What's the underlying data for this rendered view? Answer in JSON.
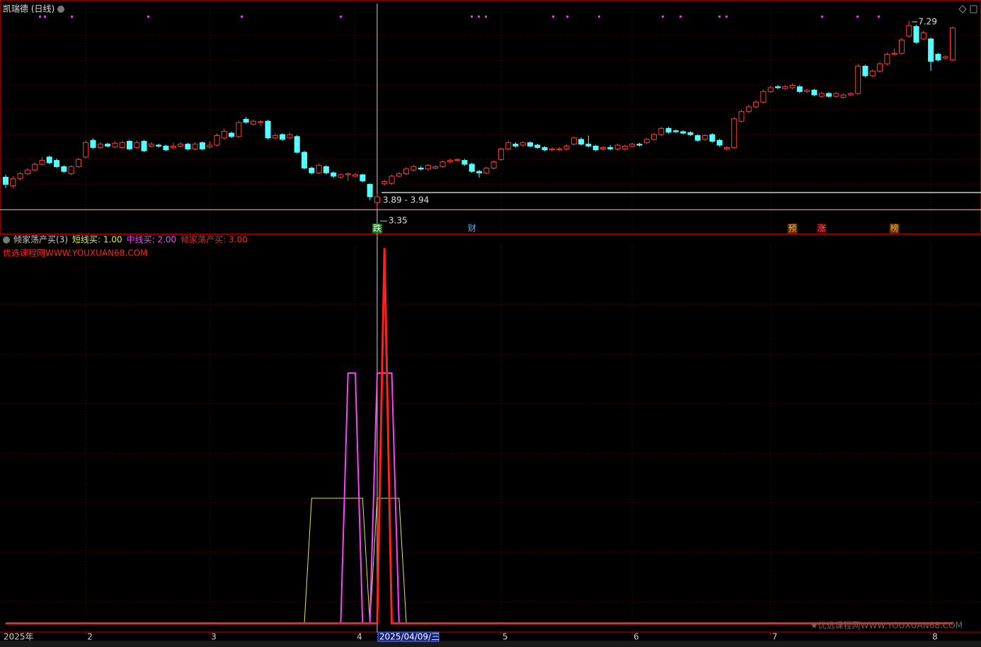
{
  "title": "凯瑞德 (日线)",
  "chart_data": [
    {
      "type": "candlestick",
      "categories": [
        "2025年",
        null,
        null,
        null,
        null,
        null,
        null,
        null,
        null,
        null,
        null,
        "2",
        null,
        null,
        null,
        null,
        null,
        null,
        null,
        null,
        null,
        null,
        null,
        null,
        null,
        null,
        null,
        null,
        "3",
        null,
        null,
        null,
        null,
        null,
        null,
        null,
        null,
        null,
        null,
        null,
        null,
        null,
        null,
        null,
        null,
        null,
        null,
        null,
        "4",
        null,
        null,
        null,
        null,
        null,
        null,
        null,
        null,
        null,
        null,
        null,
        null,
        null,
        null,
        null,
        null,
        null,
        null,
        null,
        "5",
        null,
        null,
        null,
        null,
        null,
        null,
        null,
        null,
        null,
        null,
        null,
        null,
        null,
        null,
        null,
        null,
        null,
        "6",
        null,
        null,
        null,
        null,
        null,
        null,
        null,
        null,
        null,
        null,
        null,
        null,
        null,
        null,
        null,
        null,
        null,
        null,
        "7",
        null,
        null,
        null,
        null,
        null,
        null,
        null,
        null,
        null,
        null,
        null,
        null,
        null,
        null,
        null,
        null,
        null,
        null,
        null,
        null,
        null,
        "8",
        null,
        null,
        null
      ],
      "open": [
        4.03,
        3.85,
        4.0,
        4.1,
        4.18,
        4.3,
        4.45,
        4.38,
        4.25,
        4.1,
        4.25,
        4.45,
        4.8,
        4.65,
        4.72,
        4.66,
        4.65,
        4.78,
        4.65,
        4.78,
        4.68,
        4.7,
        4.68,
        4.65,
        4.68,
        4.72,
        4.62,
        4.75,
        4.66,
        4.7,
        4.85,
        4.95,
        4.88,
        5.24,
        5.14,
        5.18,
        5.2,
        4.85,
        4.92,
        4.85,
        4.88,
        4.55,
        4.22,
        4.12,
        4.25,
        4.12,
        4.03,
        4.08,
        4.05,
        4.08,
        3.88,
        3.5,
        3.89,
        3.9,
        4.05,
        4.1,
        4.18,
        4.22,
        4.2,
        4.22,
        4.25,
        4.35,
        4.38,
        4.38,
        4.3,
        4.15,
        4.12,
        4.22,
        4.4,
        4.62,
        4.72,
        4.7,
        4.75,
        4.7,
        4.65,
        4.6,
        4.6,
        4.62,
        4.72,
        4.82,
        4.72,
        4.68,
        4.62,
        4.65,
        4.62,
        4.62,
        4.68,
        4.72,
        4.75,
        4.82,
        4.92,
        5.05,
        5.0,
        4.98,
        4.96,
        4.9,
        4.82,
        4.92,
        4.8,
        4.62,
        4.65,
        5.2,
        5.4,
        5.5,
        5.6,
        5.82,
        5.92,
        5.88,
        5.9,
        5.92,
        5.82,
        5.85,
        5.72,
        5.78,
        5.72,
        5.7,
        5.75,
        5.78,
        6.35,
        6.15,
        6.25,
        6.4,
        6.6,
        6.62,
        6.98,
        7.18,
        6.92,
        6.92,
        6.6,
        6.52,
        6.48
      ],
      "high": [
        4.08,
        4.05,
        4.14,
        4.22,
        4.34,
        4.45,
        4.48,
        4.42,
        4.28,
        4.28,
        4.44,
        4.8,
        4.84,
        4.76,
        4.75,
        4.78,
        4.79,
        4.81,
        4.8,
        4.81,
        4.76,
        4.73,
        4.71,
        4.75,
        4.76,
        4.75,
        4.76,
        4.78,
        4.78,
        4.94,
        5.05,
        4.98,
        5.21,
        5.29,
        5.23,
        5.22,
        5.23,
        4.94,
        4.95,
        4.96,
        4.91,
        4.58,
        4.25,
        4.31,
        4.28,
        4.15,
        4.11,
        4.13,
        4.12,
        4.1,
        3.9,
        3.68,
        3.98,
        4.08,
        4.14,
        4.24,
        4.28,
        4.26,
        4.31,
        4.28,
        4.38,
        4.42,
        4.43,
        4.41,
        4.33,
        4.18,
        4.25,
        4.38,
        4.65,
        4.8,
        4.76,
        4.78,
        4.78,
        4.73,
        4.68,
        4.65,
        4.66,
        4.71,
        4.88,
        4.86,
        4.9,
        4.71,
        4.68,
        4.7,
        4.73,
        4.71,
        4.75,
        4.75,
        4.85,
        4.95,
        5.08,
        5.08,
        5.03,
        5.01,
        4.99,
        4.93,
        4.93,
        4.95,
        4.83,
        4.68,
        5.28,
        5.44,
        5.54,
        5.64,
        5.86,
        5.94,
        5.96,
        5.96,
        5.99,
        5.96,
        5.88,
        5.88,
        5.81,
        5.81,
        5.81,
        5.78,
        5.81,
        6.4,
        6.38,
        6.28,
        6.44,
        6.64,
        6.72,
        6.95,
        7.29,
        7.22,
        7.1,
        6.95,
        6.63,
        6.58,
        7.18
      ],
      "low": [
        3.8,
        3.8,
        3.97,
        4.07,
        4.15,
        4.27,
        4.3,
        4.22,
        4.12,
        4.07,
        4.22,
        4.42,
        4.62,
        4.62,
        4.65,
        4.63,
        4.62,
        4.59,
        4.62,
        4.55,
        4.65,
        4.65,
        4.57,
        4.62,
        4.65,
        4.59,
        4.59,
        4.59,
        4.63,
        4.67,
        4.82,
        4.85,
        4.85,
        5.15,
        5.11,
        5.1,
        4.82,
        4.82,
        4.79,
        4.82,
        4.52,
        4.19,
        4.09,
        4.09,
        4.09,
        4.02,
        4.0,
        3.95,
        4.02,
        3.92,
        3.55,
        3.35,
        3.85,
        3.87,
        4.02,
        4.07,
        4.15,
        4.17,
        4.17,
        4.19,
        4.22,
        4.32,
        4.35,
        4.27,
        4.12,
        4.02,
        4.09,
        4.19,
        4.37,
        4.59,
        4.65,
        4.67,
        4.65,
        4.62,
        4.57,
        4.57,
        4.57,
        4.59,
        4.69,
        4.69,
        4.65,
        4.57,
        4.59,
        4.59,
        4.59,
        4.59,
        4.65,
        4.67,
        4.72,
        4.79,
        4.89,
        4.94,
        4.95,
        4.92,
        4.89,
        4.77,
        4.79,
        4.75,
        4.67,
        4.59,
        4.62,
        5.17,
        5.37,
        5.47,
        5.57,
        5.79,
        5.87,
        5.85,
        5.87,
        5.79,
        5.79,
        5.72,
        5.69,
        5.69,
        5.69,
        5.67,
        5.72,
        5.75,
        6.12,
        6.12,
        6.22,
        6.37,
        6.57,
        6.59,
        6.95,
        6.82,
        6.89,
        6.25,
        6.45,
        6.49,
        6.45
      ],
      "close": [
        3.88,
        4.0,
        4.1,
        4.18,
        4.3,
        4.38,
        4.33,
        4.25,
        4.15,
        4.25,
        4.4,
        4.75,
        4.65,
        4.72,
        4.68,
        4.74,
        4.75,
        4.62,
        4.75,
        4.58,
        4.72,
        4.68,
        4.6,
        4.68,
        4.72,
        4.62,
        4.72,
        4.62,
        4.7,
        4.9,
        4.99,
        4.88,
        5.17,
        5.18,
        5.2,
        5.19,
        4.85,
        4.9,
        4.82,
        4.92,
        4.55,
        4.22,
        4.12,
        4.28,
        4.12,
        4.05,
        4.08,
        4.1,
        4.08,
        3.95,
        3.62,
        3.62,
        3.94,
        4.05,
        4.1,
        4.2,
        4.25,
        4.2,
        4.28,
        4.25,
        4.35,
        4.38,
        4.4,
        4.3,
        4.15,
        4.12,
        4.22,
        4.35,
        4.62,
        4.75,
        4.68,
        4.75,
        4.68,
        4.65,
        4.6,
        4.62,
        4.62,
        4.68,
        4.85,
        4.72,
        4.68,
        4.6,
        4.65,
        4.62,
        4.7,
        4.68,
        4.72,
        4.7,
        4.82,
        4.92,
        5.05,
        4.97,
        4.98,
        4.95,
        4.92,
        4.8,
        4.9,
        4.78,
        4.7,
        4.65,
        5.25,
        5.4,
        5.5,
        5.6,
        5.82,
        5.9,
        5.9,
        5.92,
        5.95,
        5.82,
        5.85,
        5.75,
        5.78,
        5.72,
        5.78,
        5.75,
        5.78,
        6.35,
        6.15,
        6.25,
        6.4,
        6.6,
        6.62,
        6.9,
        7.2,
        6.85,
        7.05,
        6.45,
        6.48,
        6.55,
        7.15
      ],
      "ylim": [
        2.85,
        7.66
      ],
      "up_color": "#ff3c3c",
      "down_color": "#54ffff",
      "events": [
        null,
        null,
        null,
        null,
        null,
        null,
        null,
        null,
        null,
        null,
        null,
        null,
        null,
        null,
        null,
        null,
        null,
        null,
        null,
        null,
        null,
        null,
        null,
        null,
        null,
        null,
        null,
        null,
        null,
        null,
        null,
        null,
        null,
        null,
        null,
        null,
        null,
        null,
        null,
        null,
        null,
        null,
        null,
        null,
        null,
        null,
        null,
        null,
        null,
        null,
        null,
        {
          "label": "跌",
          "color": "#ffffff",
          "bg": "#0a7a0a"
        },
        null,
        null,
        null,
        null,
        null,
        null,
        null,
        null,
        null,
        null,
        null,
        null,
        {
          "label": "财",
          "color": "#6aa8ff"
        },
        null,
        null,
        null,
        null,
        null,
        null,
        null,
        null,
        null,
        null,
        null,
        null,
        null,
        null,
        null,
        null,
        null,
        null,
        null,
        null,
        null,
        null,
        null,
        null,
        null,
        null,
        null,
        null,
        null,
        null,
        null,
        null,
        null,
        null,
        null,
        null,
        null,
        null,
        null,
        null,
        null,
        null,
        null,
        {
          "label": "预",
          "color": "#ffb040",
          "bg": "#5a2a00"
        },
        null,
        null,
        null,
        {
          "label": "涨",
          "color": "#ff6060",
          "bg": "#4a0000"
        },
        null,
        null,
        null,
        null,
        null,
        null,
        null,
        null,
        null,
        {
          "label": "榜",
          "color": "#ffb040",
          "bg": "#5a2a00"
        },
        null,
        null,
        null
      ],
      "high_label": 7.29,
      "low_label": 3.35,
      "range_label": "3.89 - 3.94",
      "cursor_label": "2025/04/09/三"
    },
    {
      "type": "line",
      "title": "倾家荡产买(3)",
      "watermark": "优选课程网WWW.YOUXUAN68.COM",
      "ylim": [
        -0.07,
        3.03
      ],
      "series": [
        {
          "name": "短线买",
          "legend_value": ": 1.00",
          "color": "#e6e65a",
          "values": [
            0,
            0,
            0,
            0,
            0,
            0,
            0,
            0,
            0,
            0,
            0,
            0,
            0,
            0,
            0,
            0,
            0,
            0,
            0,
            0,
            0,
            0,
            0,
            0,
            0,
            0,
            0,
            0,
            0,
            0,
            0,
            0,
            0,
            0,
            0,
            0,
            0,
            0,
            0,
            0,
            0,
            0,
            1,
            1,
            1,
            1,
            1,
            1,
            1,
            1,
            0,
            1,
            1,
            1,
            1,
            0,
            0,
            0,
            0,
            0,
            0,
            0,
            0,
            0,
            0,
            0,
            0,
            0,
            0,
            0,
            0,
            0,
            0,
            0,
            0,
            0,
            0,
            0,
            0,
            0,
            0,
            0,
            0,
            0,
            0,
            0,
            0,
            0,
            0,
            0,
            0,
            0,
            0,
            0,
            0,
            0,
            0,
            0,
            0,
            0,
            0,
            0,
            0,
            0,
            0,
            0,
            0,
            0,
            0,
            0,
            0,
            0,
            0,
            0,
            0,
            0,
            0,
            0,
            0,
            0,
            0,
            0,
            0,
            0,
            0,
            0,
            0,
            0,
            0,
            0,
            0
          ]
        },
        {
          "name": "中线买",
          "legend_value": ": 2.00",
          "color": "#ff40ff",
          "values": [
            0,
            0,
            0,
            0,
            0,
            0,
            0,
            0,
            0,
            0,
            0,
            0,
            0,
            0,
            0,
            0,
            0,
            0,
            0,
            0,
            0,
            0,
            0,
            0,
            0,
            0,
            0,
            0,
            0,
            0,
            0,
            0,
            0,
            0,
            0,
            0,
            0,
            0,
            0,
            0,
            0,
            0,
            0,
            0,
            0,
            0,
            0,
            2,
            2,
            0,
            0,
            2,
            2,
            2,
            0,
            0,
            0,
            0,
            0,
            0,
            0,
            0,
            0,
            0,
            0,
            0,
            0,
            0,
            0,
            0,
            0,
            0,
            0,
            0,
            0,
            0,
            0,
            0,
            0,
            0,
            0,
            0,
            0,
            0,
            0,
            0,
            0,
            0,
            0,
            0,
            0,
            0,
            0,
            0,
            0,
            0,
            0,
            0,
            0,
            0,
            0,
            0,
            0,
            0,
            0,
            0,
            0,
            0,
            0,
            0,
            0,
            0,
            0,
            0,
            0,
            0,
            0,
            0,
            0,
            0,
            0,
            0,
            0,
            0,
            0,
            0,
            0,
            0,
            0,
            0,
            0
          ]
        },
        {
          "name": "倾家荡产买",
          "legend_value": ": 3.00",
          "color": "#ff2020",
          "values": [
            0,
            0,
            0,
            0,
            0,
            0,
            0,
            0,
            0,
            0,
            0,
            0,
            0,
            0,
            0,
            0,
            0,
            0,
            0,
            0,
            0,
            0,
            0,
            0,
            0,
            0,
            0,
            0,
            0,
            0,
            0,
            0,
            0,
            0,
            0,
            0,
            0,
            0,
            0,
            0,
            0,
            0,
            0,
            0,
            0,
            0,
            0,
            0,
            0,
            0,
            0,
            0,
            3,
            0,
            0,
            0,
            0,
            0,
            0,
            0,
            0,
            0,
            0,
            0,
            0,
            0,
            0,
            0,
            0,
            0,
            0,
            0,
            0,
            0,
            0,
            0,
            0,
            0,
            0,
            0,
            0,
            0,
            0,
            0,
            0,
            0,
            0,
            0,
            0,
            0,
            0,
            0,
            0,
            0,
            0,
            0,
            0,
            0,
            0,
            0,
            0,
            0,
            0,
            0,
            0,
            0,
            0,
            0,
            0,
            0,
            0,
            0,
            0,
            0,
            0,
            0,
            0,
            0,
            0,
            0,
            0,
            0,
            0,
            0,
            0,
            0,
            0,
            0,
            0,
            0,
            0
          ]
        }
      ]
    }
  ],
  "footer_watermark": "★优选课程网WWW.YOUXUAN68.COM"
}
